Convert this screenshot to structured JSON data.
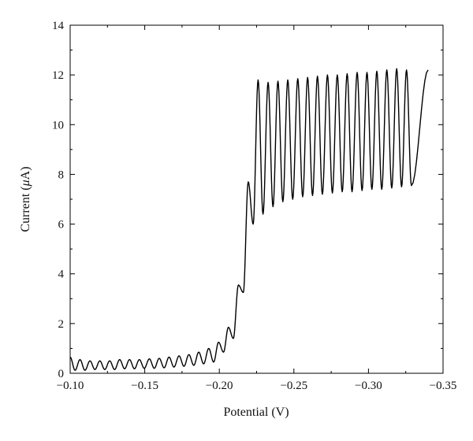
{
  "chart_data": {
    "type": "line",
    "xlabel": "Potential (V)",
    "ylabel_prefix": "Current (",
    "ylabel_symbol": "μ",
    "ylabel_suffix": "A)",
    "xlim": [
      -0.1,
      -0.35
    ],
    "ylim": [
      0,
      14
    ],
    "x_ticks": [
      -0.1,
      -0.15,
      -0.2,
      -0.25,
      -0.3,
      -0.35
    ],
    "x_tick_labels": [
      "−0.10",
      "−0.15",
      "−0.20",
      "−0.25",
      "−0.30",
      "−0.35"
    ],
    "y_ticks": [
      0,
      2,
      4,
      6,
      8,
      10,
      12,
      14
    ],
    "y_tick_labels": [
      "0",
      "2",
      "4",
      "6",
      "8",
      "10",
      "12",
      "14"
    ],
    "grid": false,
    "legend": "none",
    "line_color": "#000000",
    "series": [
      {
        "peaks": [
          {
            "x": -0.1,
            "y": 0.65
          },
          {
            "x": -0.1066,
            "y": 0.55
          },
          {
            "x": -0.1133,
            "y": 0.5
          },
          {
            "x": -0.1199,
            "y": 0.5
          },
          {
            "x": -0.1265,
            "y": 0.5
          },
          {
            "x": -0.1332,
            "y": 0.55
          },
          {
            "x": -0.1398,
            "y": 0.55
          },
          {
            "x": -0.1464,
            "y": 0.55
          },
          {
            "x": -0.1531,
            "y": 0.58
          },
          {
            "x": -0.1597,
            "y": 0.6
          },
          {
            "x": -0.1663,
            "y": 0.65
          },
          {
            "x": -0.173,
            "y": 0.7
          },
          {
            "x": -0.1796,
            "y": 0.75
          },
          {
            "x": -0.1862,
            "y": 0.85
          },
          {
            "x": -0.1929,
            "y": 1.0
          },
          {
            "x": -0.1995,
            "y": 1.25
          },
          {
            "x": -0.2061,
            "y": 1.85
          },
          {
            "x": -0.2128,
            "y": 3.55
          },
          {
            "x": -0.2194,
            "y": 7.7
          },
          {
            "x": -0.226,
            "y": 11.8
          },
          {
            "x": -0.2327,
            "y": 11.7
          },
          {
            "x": -0.2393,
            "y": 11.75
          },
          {
            "x": -0.2459,
            "y": 11.8
          },
          {
            "x": -0.2526,
            "y": 11.85
          },
          {
            "x": -0.2592,
            "y": 11.9
          },
          {
            "x": -0.2658,
            "y": 11.95
          },
          {
            "x": -0.2725,
            "y": 12.0
          },
          {
            "x": -0.2791,
            "y": 12.0
          },
          {
            "x": -0.2857,
            "y": 12.05
          },
          {
            "x": -0.2924,
            "y": 12.1
          },
          {
            "x": -0.299,
            "y": 12.1
          },
          {
            "x": -0.3056,
            "y": 12.15
          },
          {
            "x": -0.3123,
            "y": 12.2
          },
          {
            "x": -0.3189,
            "y": 12.25
          },
          {
            "x": -0.3255,
            "y": 12.2
          }
        ],
        "troughs": [
          {
            "x": -0.1033,
            "y": 0.12
          },
          {
            "x": -0.1099,
            "y": 0.12
          },
          {
            "x": -0.1166,
            "y": 0.15
          },
          {
            "x": -0.1232,
            "y": 0.15
          },
          {
            "x": -0.1298,
            "y": 0.15
          },
          {
            "x": -0.1365,
            "y": 0.18
          },
          {
            "x": -0.1431,
            "y": 0.18
          },
          {
            "x": -0.1497,
            "y": 0.2
          },
          {
            "x": -0.1564,
            "y": 0.2
          },
          {
            "x": -0.163,
            "y": 0.22
          },
          {
            "x": -0.1696,
            "y": 0.25
          },
          {
            "x": -0.1763,
            "y": 0.28
          },
          {
            "x": -0.1829,
            "y": 0.32
          },
          {
            "x": -0.1895,
            "y": 0.38
          },
          {
            "x": -0.1962,
            "y": 0.45
          },
          {
            "x": -0.2028,
            "y": 0.85
          },
          {
            "x": -0.2094,
            "y": 1.4
          },
          {
            "x": -0.2161,
            "y": 3.25
          },
          {
            "x": -0.2227,
            "y": 6.0
          },
          {
            "x": -0.2293,
            "y": 6.4
          },
          {
            "x": -0.236,
            "y": 6.7
          },
          {
            "x": -0.2426,
            "y": 6.9
          },
          {
            "x": -0.2492,
            "y": 7.0
          },
          {
            "x": -0.2559,
            "y": 7.1
          },
          {
            "x": -0.2625,
            "y": 7.15
          },
          {
            "x": -0.2691,
            "y": 7.2
          },
          {
            "x": -0.2758,
            "y": 7.25
          },
          {
            "x": -0.2824,
            "y": 7.3
          },
          {
            "x": -0.289,
            "y": 7.3
          },
          {
            "x": -0.2957,
            "y": 7.35
          },
          {
            "x": -0.3023,
            "y": 7.4
          },
          {
            "x": -0.3089,
            "y": 7.4
          },
          {
            "x": -0.3156,
            "y": 7.45
          },
          {
            "x": -0.3222,
            "y": 7.5
          },
          {
            "x": -0.3288,
            "y": 7.55
          }
        ],
        "end": {
          "x": -0.34,
          "y": 12.2
        }
      }
    ]
  }
}
